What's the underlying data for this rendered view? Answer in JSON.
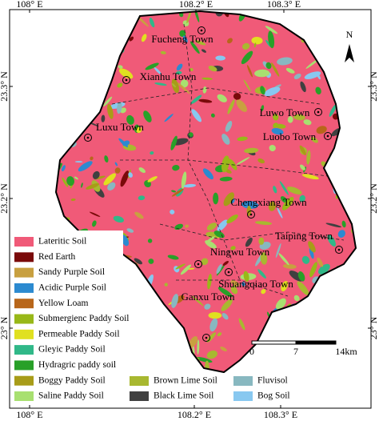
{
  "axes": {
    "top": [
      "108° E",
      "108.2° E",
      "108.3° E"
    ],
    "bottom": [
      "108° E",
      "108.2° E",
      "108.3° E"
    ],
    "left": [
      "23.3° N",
      "23.2° N",
      "23° N"
    ],
    "right": [
      "23.3° N",
      "23.2° N",
      "23° N"
    ]
  },
  "north": "N",
  "towns": [
    "Fucheng Town",
    "Xianhu Town",
    "Luxu Town",
    "Luwo Town",
    "Luobo Town",
    "Chengxiang Town",
    "Taiping Town",
    "Ningwu Town",
    "Shuangqiao Town",
    "Ganxu Town"
  ],
  "legend": [
    {
      "label": "Lateritic Soil",
      "color": "#f05a78"
    },
    {
      "label": "Red Earth",
      "color": "#7a0a0a"
    },
    {
      "label": "Sandy Purple Soil",
      "color": "#c8a040"
    },
    {
      "label": "Acidic Purple Soil",
      "color": "#2c8ad0"
    },
    {
      "label": "Yellow Loam",
      "color": "#b8661a"
    },
    {
      "label": "Submergienc Paddy Soil",
      "color": "#98b818"
    },
    {
      "label": "Permeable Paddy Soil",
      "color": "#e0e020"
    },
    {
      "label": "Gleyic Paddy Soil",
      "color": "#30b888"
    },
    {
      "label": "Hydragric paddy soil",
      "color": "#28a028"
    },
    {
      "label": "Boggy Paddy Soil",
      "color": "#a89c18"
    },
    {
      "label": "Saline Paddy Soil",
      "color": "#a8e070"
    },
    {
      "label": "Brown Lime Soil",
      "color": "#a8b830"
    },
    {
      "label": "Black Lime Soil",
      "color": "#404040"
    },
    {
      "label": "Fluvisol",
      "color": "#88b8c0"
    },
    {
      "label": "Bog Soil",
      "color": "#88c8f0"
    }
  ],
  "scale": [
    "0",
    "7",
    "14km"
  ]
}
